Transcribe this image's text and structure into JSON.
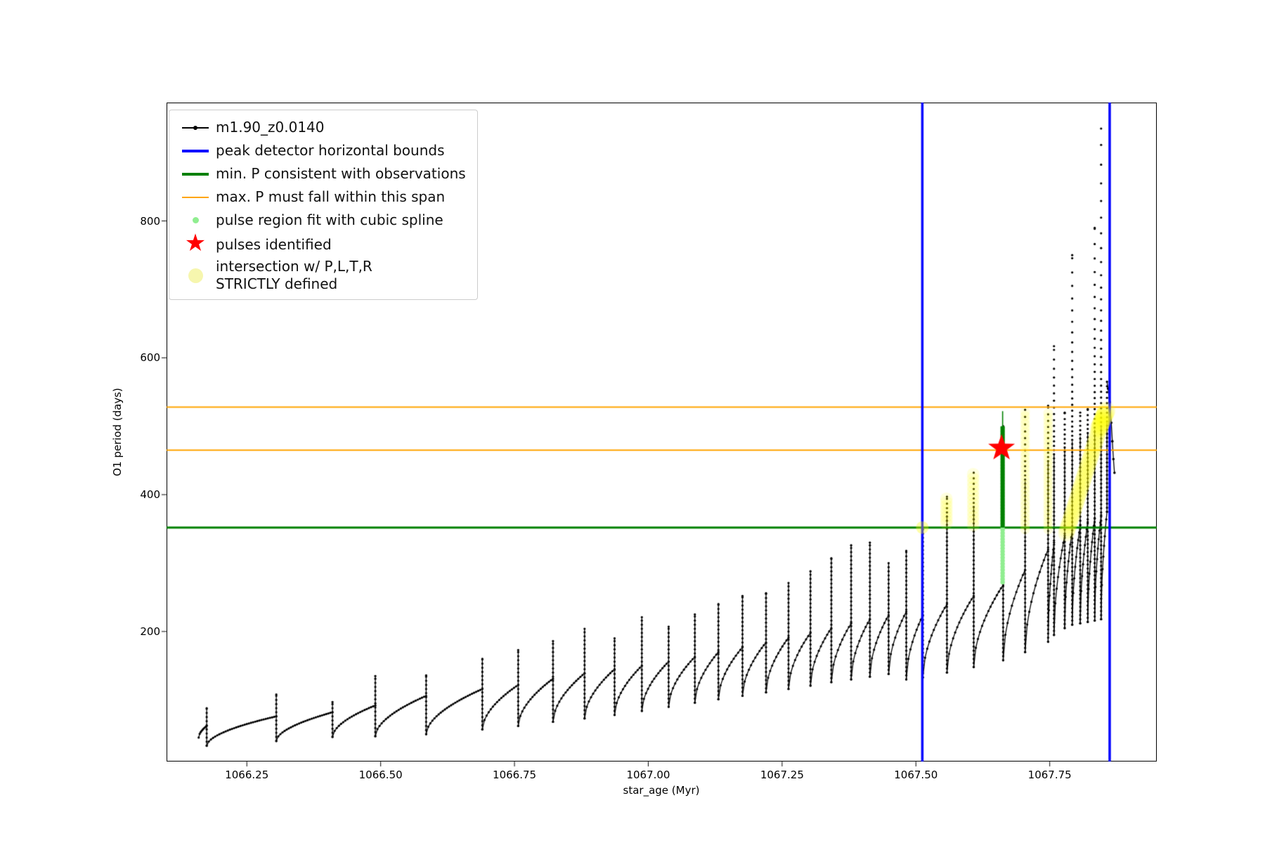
{
  "window": {
    "background": "#ffffff"
  },
  "chart_data": {
    "type": "scatter",
    "title": "",
    "xlabel": "star_age (Myr)",
    "ylabel": "O1 period (days)",
    "xlim": [
      1066.1,
      1067.95
    ],
    "ylim": [
      10,
      973
    ],
    "grid": false,
    "x_ticks": {
      "values": [
        1066.25,
        1066.5,
        1066.75,
        1067.0,
        1067.25,
        1067.5,
        1067.75
      ],
      "labels": [
        "1066.25",
        "1066.50",
        "1066.75",
        "1067.00",
        "1067.25",
        "1067.50",
        "1067.75"
      ]
    },
    "y_ticks": {
      "values": [
        200,
        400,
        600,
        800
      ],
      "labels": [
        "200",
        "400",
        "600",
        "800"
      ]
    },
    "legend_position": "upper left",
    "legend": [
      {
        "label": "m1.90_z0.0140",
        "marker": "line-dot",
        "color": "#000000",
        "icon": "series-line-icon"
      },
      {
        "label": "peak detector horizontal bounds",
        "marker": "thick-line",
        "color": "#0000ff",
        "icon": "blue-bound-line-icon"
      },
      {
        "label": "min. P consistent with observations",
        "marker": "thick-line",
        "color": "#008000",
        "icon": "green-min-line-icon"
      },
      {
        "label": "max. P must fall within this span",
        "marker": "line",
        "color": "#ffa500",
        "icon": "orange-span-line-icon"
      },
      {
        "label": "pulse region fit with cubic spline",
        "marker": "dot",
        "color": "#90ee90",
        "icon": "spline-dot-icon"
      },
      {
        "label": "pulses identified",
        "marker": "star",
        "color": "#ff0000",
        "icon": "pulse-star-icon"
      },
      {
        "label": "intersection w/ P,L,T,R\nSTRICTLY defined",
        "marker": "big-dot",
        "color": "#f6f6ae",
        "icon": "intersection-dot-icon"
      }
    ],
    "series_label": "m1.90_z0.0140",
    "black_series": {
      "color": "#000000",
      "rise_exponent": 0.55,
      "cycles": [
        [
          1066.16,
          1066.175,
          45,
          62,
          88
        ],
        [
          1066.175,
          1066.305,
          33,
          76,
          108
        ],
        [
          1066.305,
          1066.41,
          40,
          82,
          97
        ],
        [
          1066.41,
          1066.49,
          46,
          92,
          135
        ],
        [
          1066.49,
          1066.585,
          47,
          106,
          136
        ],
        [
          1066.585,
          1066.69,
          50,
          116,
          160
        ],
        [
          1066.69,
          1066.757,
          57,
          122,
          173
        ],
        [
          1066.757,
          1066.822,
          62,
          131,
          186
        ],
        [
          1066.822,
          1066.881,
          68,
          139,
          204
        ],
        [
          1066.881,
          1066.937,
          73,
          145,
          190
        ],
        [
          1066.937,
          1066.988,
          78,
          150,
          221
        ],
        [
          1066.988,
          1067.038,
          84,
          156,
          207
        ],
        [
          1067.038,
          1067.087,
          90,
          163,
          225
        ],
        [
          1067.087,
          1067.131,
          96,
          170,
          240
        ],
        [
          1067.131,
          1067.176,
          101,
          177,
          252
        ],
        [
          1067.176,
          1067.22,
          106,
          184,
          256
        ],
        [
          1067.22,
          1067.262,
          111,
          191,
          271
        ],
        [
          1067.262,
          1067.303,
          116,
          198,
          288
        ],
        [
          1067.303,
          1067.342,
          121,
          205,
          307
        ],
        [
          1067.342,
          1067.379,
          126,
          212,
          326
        ],
        [
          1067.379,
          1067.414,
          130,
          218,
          330
        ],
        [
          1067.414,
          1067.449,
          134,
          224,
          300
        ],
        [
          1067.449,
          1067.482,
          138,
          229,
          318
        ],
        [
          1067.482,
          1067.513,
          130,
          224,
          352
        ],
        [
          1067.513,
          1067.558,
          133,
          240,
          397
        ],
        [
          1067.558,
          1067.608,
          140,
          252,
          432
        ],
        [
          1067.608,
          1067.663,
          148,
          268,
          500
        ],
        [
          1067.663,
          1067.704,
          158,
          290,
          524
        ],
        [
          1067.704,
          1067.747,
          170,
          320,
          530
        ],
        [
          1067.747,
          1067.758,
          185,
          330,
          617
        ],
        [
          1067.758,
          1067.778,
          195,
          340,
          520
        ],
        [
          1067.778,
          1067.792,
          205,
          348,
          750
        ],
        [
          1067.792,
          1067.807,
          210,
          355,
          520
        ],
        [
          1067.807,
          1067.821,
          212,
          360,
          525
        ],
        [
          1067.821,
          1067.834,
          214,
          365,
          790
        ],
        [
          1067.834,
          1067.846,
          216,
          370,
          935
        ],
        [
          1067.846,
          1067.857,
          218,
          375,
          565
        ]
      ],
      "tail": [
        [
          1067.859,
          555
        ],
        [
          1067.862,
          535
        ],
        [
          1067.865,
          505
        ],
        [
          1067.867,
          478
        ],
        [
          1067.869,
          452
        ],
        [
          1067.871,
          432
        ]
      ]
    },
    "h_lines": [
      {
        "name": "min-P-line",
        "y": 352,
        "color": "#008000",
        "width": 3
      },
      {
        "name": "max-P-lower-line",
        "y": 465,
        "color": "#ffa500",
        "width": 2
      },
      {
        "name": "max-P-upper-line",
        "y": 528,
        "color": "#ffa500",
        "width": 2
      }
    ],
    "v_lines": [
      {
        "name": "peak-bound-left",
        "x": 1067.512,
        "color": "#0000ff",
        "width": 3.5
      },
      {
        "name": "peak-bound-right",
        "x": 1067.862,
        "color": "#0000ff",
        "width": 3.5
      }
    ],
    "spline_fit": {
      "x": 1067.662,
      "dots_y0": 272,
      "dots_y1": 500,
      "dot_color": "#90ee90",
      "seg_y0": 352,
      "seg_y1": 500,
      "thin_top": 522,
      "line_color": "#008000"
    },
    "pulse_star": {
      "x": 1067.66,
      "y": 468,
      "color": "#ff0000",
      "outer_r": 20,
      "inner_r": 8
    },
    "yellow_clusters": {
      "color": "rgba(255,255,0,0.13)",
      "segments": [
        {
          "x0": 1067.512,
          "y0": 352,
          "x1": 1067.512,
          "y1": 352,
          "r": 9,
          "n": 3
        },
        {
          "x0": 1067.557,
          "y0": 358,
          "x1": 1067.557,
          "y1": 394,
          "r": 9,
          "n": 8
        },
        {
          "x0": 1067.607,
          "y0": 355,
          "x1": 1067.607,
          "y1": 430,
          "r": 9,
          "n": 13
        },
        {
          "x0": 1067.704,
          "y0": 349,
          "x1": 1067.704,
          "y1": 521,
          "r": 7,
          "n": 30
        },
        {
          "x0": 1067.747,
          "y0": 349,
          "x1": 1067.747,
          "y1": 519,
          "r": 7,
          "n": 30
        },
        {
          "x0": 1067.781,
          "y0": 344,
          "x1": 1067.851,
          "y1": 516,
          "r": 12,
          "n": 46
        },
        {
          "x0": 1067.842,
          "y0": 497,
          "x1": 1067.856,
          "y1": 523,
          "r": 13,
          "n": 12
        }
      ]
    }
  }
}
